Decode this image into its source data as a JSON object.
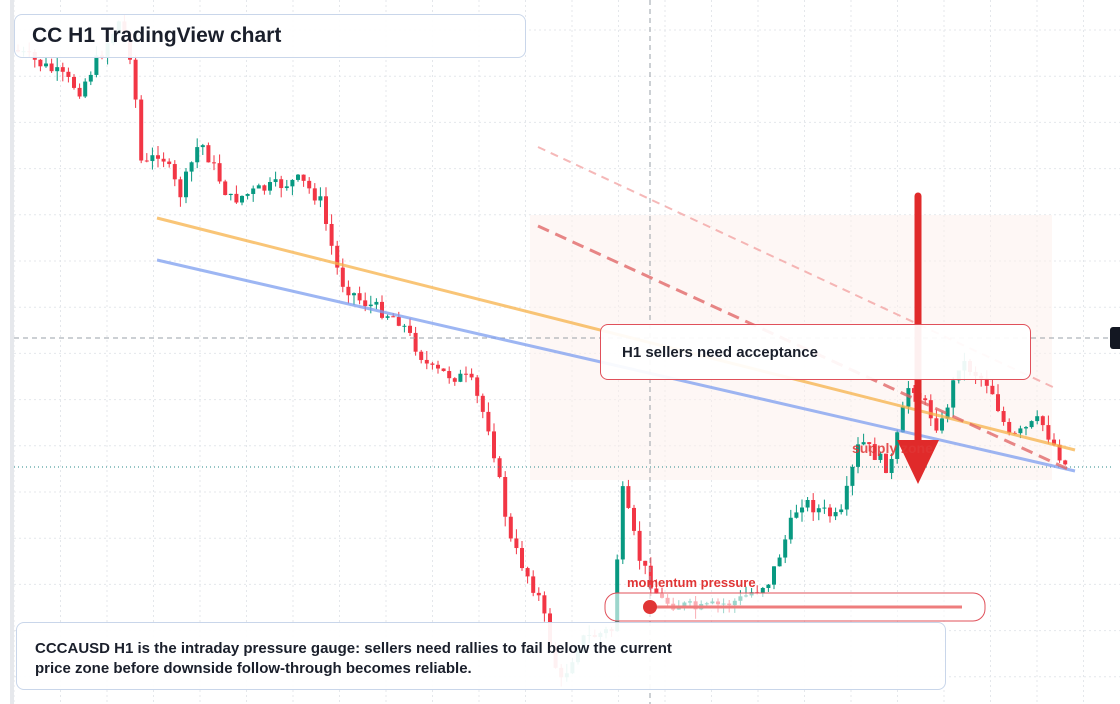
{
  "header": {
    "title": "CC H1 TradingView chart"
  },
  "annotations": {
    "callout": "H1 sellers need acceptance",
    "zone_label": "supply zone",
    "gauge_label": "momentum pressure"
  },
  "caption": "CCCAUSD H1 is the intraday pressure gauge: sellers need rallies to fail below the current price zone before downside follow-through becomes reliable."
}
